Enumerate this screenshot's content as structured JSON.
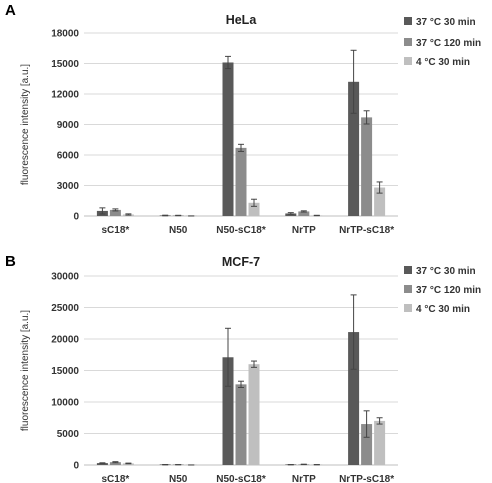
{
  "chart_data": [
    {
      "panel": "A",
      "type": "bar",
      "title": "HeLa",
      "xlabel": "",
      "ylabel": "fluorescence intensity  [a.u.]",
      "ylim": [
        0,
        18000
      ],
      "yticks": [
        0,
        3000,
        6000,
        9000,
        12000,
        15000,
        18000
      ],
      "ytick_labels": [
        "0",
        "3000",
        "6000",
        "9000",
        "12000",
        "15000",
        "18000"
      ],
      "grid": true,
      "legend_position": "top-right",
      "categories": [
        "sC18*",
        "N50",
        "N50-sC18*",
        "NrTP",
        "NrTP-sC18*"
      ],
      "series": [
        {
          "name": "37 °C 30 min",
          "color": "#595959",
          "values": [
            500,
            50,
            15100,
            250,
            13200
          ],
          "errors": [
            300,
            30,
            600,
            80,
            3100
          ]
        },
        {
          "name": "37 °C 120 min",
          "color": "#8c8c8c",
          "values": [
            600,
            50,
            6700,
            450,
            9700
          ],
          "errors": [
            100,
            20,
            350,
            60,
            650
          ]
        },
        {
          "name": "4 °C 30 min",
          "color": "#bfbfbf",
          "values": [
            150,
            0,
            1300,
            50,
            2800
          ],
          "errors": [
            60,
            10,
            350,
            20,
            550
          ]
        }
      ]
    },
    {
      "panel": "B",
      "type": "bar",
      "title": "MCF-7",
      "xlabel": "",
      "ylabel": "fluorescence intensity  [a.u.]",
      "ylim": [
        0,
        30000
      ],
      "yticks": [
        0,
        5000,
        10000,
        15000,
        20000,
        25000,
        30000
      ],
      "ytick_labels": [
        "0",
        "5000",
        "10000",
        "15000",
        "20000",
        "25000",
        "30000"
      ],
      "grid": true,
      "legend_position": "top-right",
      "categories": [
        "sC18*",
        "N50",
        "N50-sC18*",
        "NrTP",
        "NrTP-sC18*"
      ],
      "series": [
        {
          "name": "37 °C 30 min",
          "color": "#595959",
          "values": [
            300,
            50,
            17100,
            50,
            21100
          ],
          "errors": [
            50,
            30,
            4600,
            20,
            5900
          ]
        },
        {
          "name": "37 °C 120 min",
          "color": "#8c8c8c",
          "values": [
            450,
            50,
            12800,
            100,
            6500
          ],
          "errors": [
            80,
            20,
            500,
            30,
            2100
          ]
        },
        {
          "name": "4 °C 30 min",
          "color": "#bfbfbf",
          "values": [
            250,
            0,
            16000,
            50,
            7000
          ],
          "errors": [
            50,
            10,
            500,
            20,
            500
          ]
        }
      ]
    }
  ]
}
